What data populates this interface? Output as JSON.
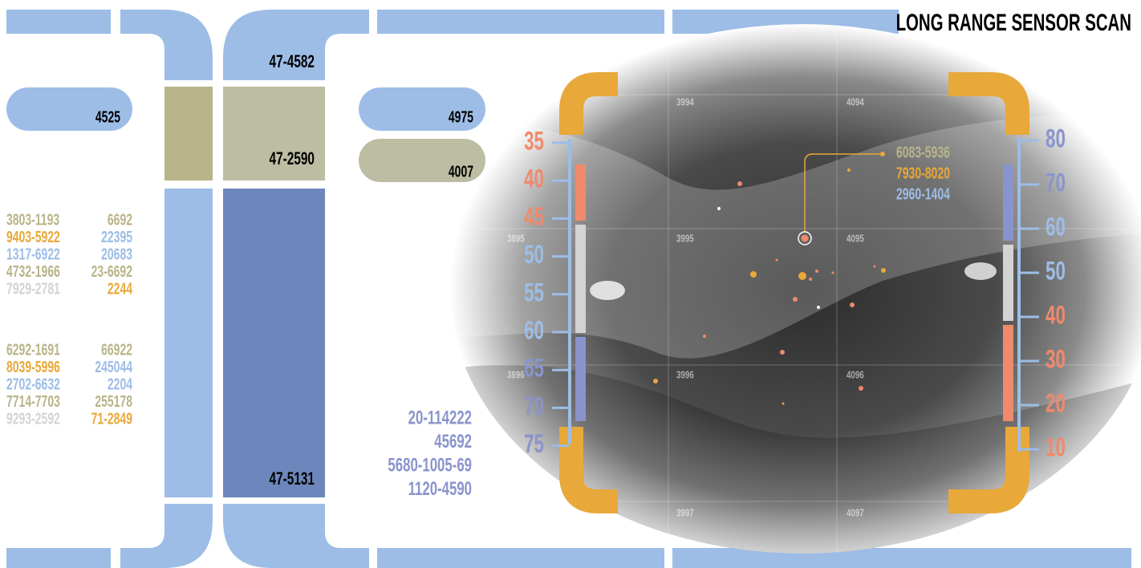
{
  "header": {
    "title": "LONG RANGE SENSOR SCAN"
  },
  "columns": {
    "top_label": "47-4582",
    "middle_label": "47-2590",
    "bottom_label": "47-5131"
  },
  "pills": [
    "4525",
    "4975",
    "4007"
  ],
  "readout_groups": [
    [
      [
        "3803-1193",
        "6692"
      ],
      [
        "9403-5922",
        "22395"
      ],
      [
        "1317-6922",
        "20683"
      ],
      [
        "4732-1966",
        "23-6692"
      ],
      [
        "7929-2781",
        "2244"
      ]
    ],
    [
      [
        "6292-1691",
        "66922"
      ],
      [
        "8039-5996",
        "245044"
      ],
      [
        "2702-6632",
        "2204"
      ],
      [
        "7714-7703",
        "255178"
      ],
      [
        "9293-2592",
        "71-2849"
      ]
    ]
  ],
  "footer_readout": [
    "20-114222",
    "45692",
    "5680-1005-69",
    "1120-4590"
  ],
  "scan": {
    "grid_labels": [
      "3994",
      "4094",
      "3895",
      "3995",
      "4095",
      "3896",
      "3996",
      "4096",
      "3997",
      "4097"
    ],
    "left_scale": [
      "35",
      "40",
      "45",
      "50",
      "55",
      "60",
      "65",
      "70",
      "75"
    ],
    "right_scale": [
      "80",
      "70",
      "60",
      "50",
      "40",
      "30",
      "20",
      "10"
    ],
    "target_readout": [
      "6083-5936",
      "7930-8020",
      "2960-1404"
    ]
  }
}
